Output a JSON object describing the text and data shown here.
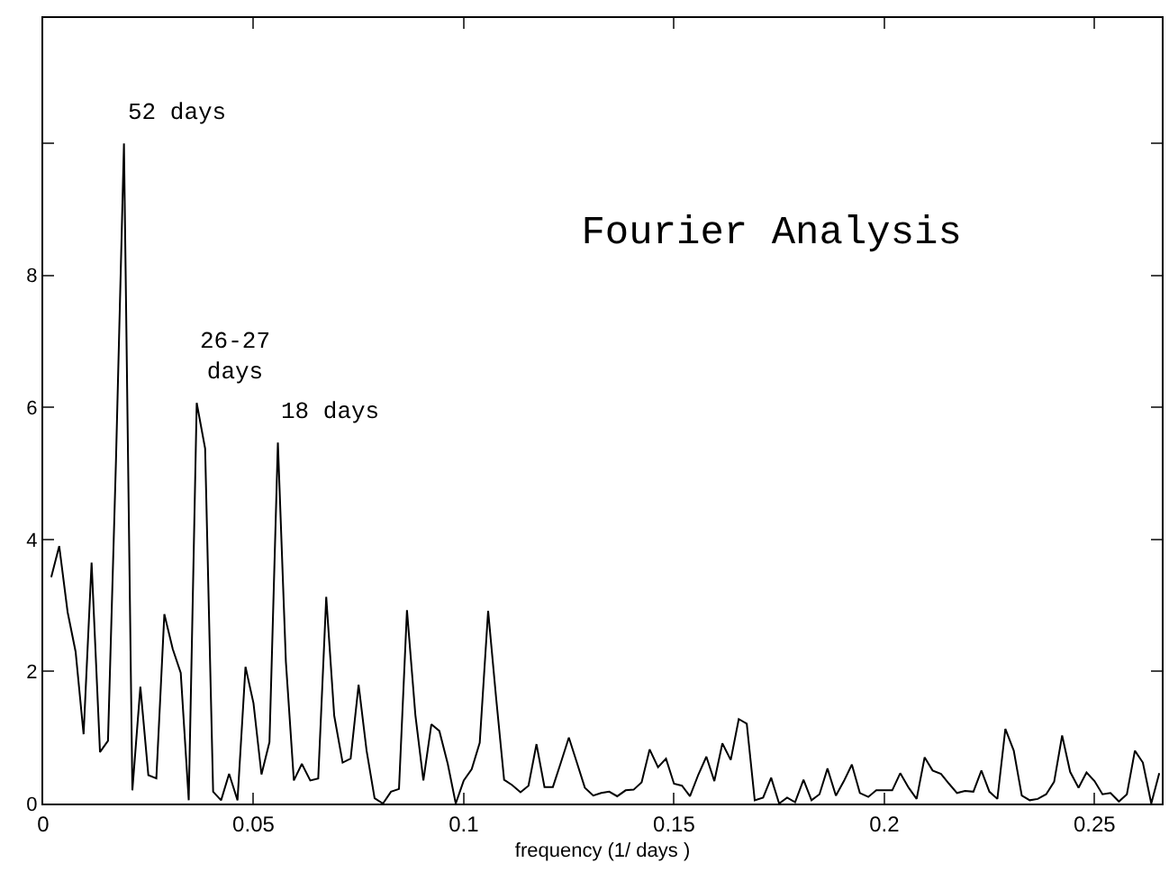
{
  "chart_data": {
    "type": "line",
    "title": "Fourier Analysis",
    "xlabel": "frequency (1/ days )",
    "x": [
      0.0019,
      0.0038,
      0.0058,
      0.0077,
      0.0096,
      0.0115,
      0.0135,
      0.0154,
      0.0173,
      0.0192,
      0.0212,
      0.0231,
      0.025,
      0.0269,
      0.0288,
      0.0308,
      0.0327,
      0.0346,
      0.0365,
      0.0385,
      0.0404,
      0.0423,
      0.0442,
      0.0462,
      0.0481,
      0.05,
      0.0519,
      0.0538,
      0.0558,
      0.0577,
      0.0596,
      0.0615,
      0.0635,
      0.0654,
      0.0673,
      0.0692,
      0.0712,
      0.0731,
      0.075,
      0.0769,
      0.0788,
      0.0808,
      0.0827,
      0.0846,
      0.0865,
      0.0885,
      0.0904,
      0.0923,
      0.0942,
      0.0962,
      0.0981,
      0.1,
      0.1019,
      0.1038,
      0.1058,
      0.1077,
      0.1096,
      0.1115,
      0.1135,
      0.1154,
      0.1173,
      0.1192,
      0.1212,
      0.1231,
      0.125,
      0.1269,
      0.1288,
      0.1308,
      0.1327,
      0.1346,
      0.1365,
      0.1385,
      0.1404,
      0.1423,
      0.1442,
      0.1462,
      0.1481,
      0.15,
      0.1519,
      0.1538,
      0.1558,
      0.1577,
      0.1596,
      0.1615,
      0.1635,
      0.1654,
      0.1673,
      0.1692,
      0.1712,
      0.1731,
      0.175,
      0.1769,
      0.1788,
      0.1808,
      0.1827,
      0.1846,
      0.1865,
      0.1885,
      0.1904,
      0.1923,
      0.1942,
      0.1962,
      0.1981,
      0.2,
      0.2019,
      0.2038,
      0.2058,
      0.2077,
      0.2096,
      0.2115,
      0.2135,
      0.2154,
      0.2173,
      0.2192,
      0.2212,
      0.2231,
      0.225,
      0.2269,
      0.2288,
      0.2308,
      0.2327,
      0.2346,
      0.2365,
      0.2385,
      0.2404,
      0.2423,
      0.2442,
      0.2462,
      0.2481,
      0.25,
      0.2519,
      0.2538,
      0.2558,
      0.2577,
      0.2596,
      0.2615,
      0.2635,
      0.2654
    ],
    "series": [
      {
        "color": "#000000",
        "values": [
          3.43,
          3.9,
          2.9,
          2.3,
          1.05,
          3.65,
          0.78,
          0.95,
          5.2,
          10.0,
          0.2,
          1.77,
          0.43,
          0.38,
          2.87,
          2.34,
          1.98,
          0.05,
          6.07,
          5.38,
          0.18,
          0.05,
          0.45,
          0.05,
          2.07,
          1.52,
          0.44,
          0.93,
          5.47,
          2.15,
          0.35,
          0.6,
          0.35,
          0.38,
          3.13,
          1.33,
          0.62,
          0.68,
          1.8,
          0.8,
          0.08,
          0.0,
          0.18,
          0.22,
          2.93,
          1.34,
          0.35,
          1.2,
          1.1,
          0.6,
          0.0,
          0.35,
          0.52,
          0.92,
          2.92,
          1.6,
          0.36,
          0.28,
          0.17,
          0.27,
          0.9,
          0.25,
          0.25,
          0.62,
          1.0,
          0.62,
          0.24,
          0.12,
          0.16,
          0.18,
          0.11,
          0.2,
          0.21,
          0.32,
          0.82,
          0.55,
          0.68,
          0.3,
          0.27,
          0.11,
          0.44,
          0.71,
          0.34,
          0.91,
          0.66,
          1.28,
          1.21,
          0.05,
          0.09,
          0.39,
          0.0,
          0.09,
          0.02,
          0.36,
          0.05,
          0.14,
          0.53,
          0.12,
          0.34,
          0.59,
          0.16,
          0.1,
          0.2,
          0.2,
          0.2,
          0.46,
          0.24,
          0.07,
          0.7,
          0.5,
          0.45,
          0.3,
          0.16,
          0.19,
          0.18,
          0.5,
          0.18,
          0.07,
          1.13,
          0.8,
          0.12,
          0.05,
          0.07,
          0.14,
          0.33,
          1.03,
          0.48,
          0.24,
          0.47,
          0.34,
          0.14,
          0.16,
          0.03,
          0.14,
          0.8,
          0.62,
          0.0,
          0.46
        ]
      }
    ],
    "annotations": [
      {
        "text": "52 days",
        "x": 0.0192,
        "y": 10.0
      },
      {
        "text": "26-27\ndays",
        "x": 0.0365,
        "y": 6.07
      },
      {
        "text": "18 days",
        "x": 0.0558,
        "y": 5.47
      }
    ],
    "xlim": [
      0,
      0.266
    ],
    "ylim": [
      0,
      11.9
    ],
    "xticks": [
      0,
      0.05,
      0.1,
      0.15,
      0.2,
      0.25
    ],
    "yticks": [
      0,
      2,
      4,
      6,
      8,
      {
        "value": 10,
        "label": null
      }
    ],
    "marker": "none",
    "line_style": "solid"
  }
}
